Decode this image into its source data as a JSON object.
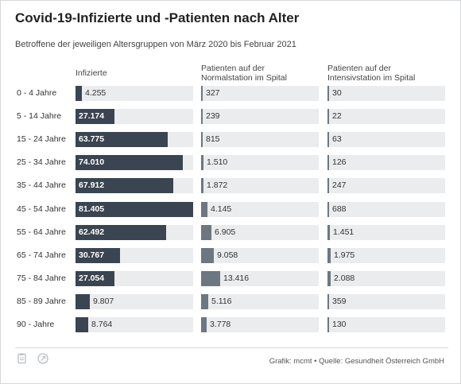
{
  "title": "Covid-19-Infizierte und -Patienten nach Alter",
  "subtitle": "Betroffene der jeweiligen Altersgruppen von März 2020 bis Februar 2021",
  "columns": {
    "infizierte": "Infizierte",
    "normal_line1": "Patienten auf der",
    "normal_line2": "Normalstation im Spital",
    "intensiv_line1": "Patienten auf der",
    "intensiv_line2": "Intensivstation im Spital"
  },
  "source": "Grafik: mcmt • Quelle: Gesundheit Österreich GmbH",
  "footer_icons": [
    "clipboard-icon",
    "share-icon"
  ],
  "colors": {
    "infizierte_bar": "#3a4551",
    "patient_bar": "#6d7781",
    "track": "#ebecee"
  },
  "chart_data": {
    "type": "bar",
    "orientation": "horizontal",
    "title": "Covid-19-Infizierte und -Patienten nach Alter",
    "subtitle": "Betroffene der jeweiligen Altersgruppen von März 2020 bis Februar 2021",
    "categories": [
      "0 - 4 Jahre",
      "5 - 14 Jahre",
      "15 - 24 Jahre",
      "25 - 34 Jahre",
      "35 - 44 Jahre",
      "45 - 54 Jahre",
      "55 - 64 Jahre",
      "65 - 74 Jahre",
      "75 - 84 Jahre",
      "85 - 89 Jahre",
      "90 - Jahre"
    ],
    "series": [
      {
        "name": "Infizierte",
        "values": [
          4255,
          27174,
          63775,
          74010,
          67912,
          81405,
          62492,
          30767,
          27054,
          9807,
          8764
        ],
        "labels": [
          "4.255",
          "27.174",
          "63.775",
          "74.010",
          "67.912",
          "81.405",
          "62.492",
          "30.767",
          "27.054",
          "9.807",
          "8.764"
        ],
        "max": 81405
      },
      {
        "name": "Patienten auf der Normalstation im Spital",
        "values": [
          327,
          239,
          815,
          1510,
          1872,
          4145,
          6905,
          9058,
          13416,
          5116,
          3778
        ],
        "labels": [
          "327",
          "239",
          "815",
          "1.510",
          "1.872",
          "4.145",
          "6.905",
          "9.058",
          "13.416",
          "5.116",
          "3.778"
        ],
        "max": 81405
      },
      {
        "name": "Patienten auf der Intensivstation im Spital",
        "values": [
          30,
          22,
          63,
          126,
          247,
          688,
          1451,
          1975,
          2088,
          359,
          130
        ],
        "labels": [
          "30",
          "22",
          "63",
          "126",
          "247",
          "688",
          "1.451",
          "1.975",
          "2.088",
          "359",
          "130"
        ],
        "max": 81405
      }
    ],
    "grid": false,
    "legend": "column-headers"
  }
}
